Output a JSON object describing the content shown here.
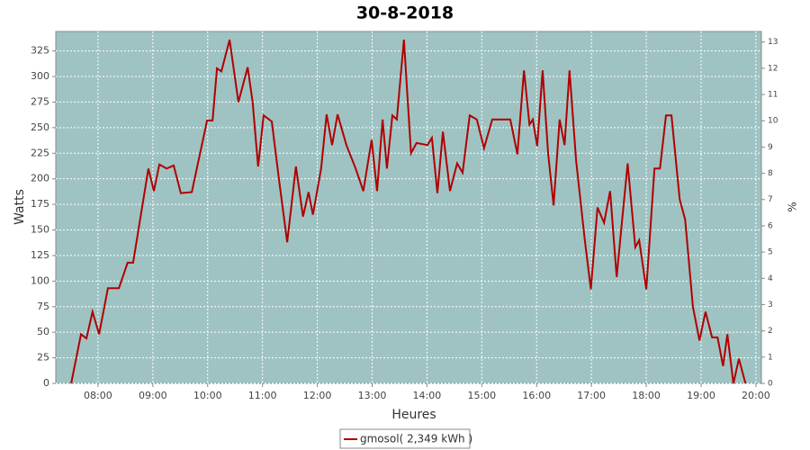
{
  "chart_data": {
    "type": "line",
    "title": "30-8-2018",
    "x_label": "Heures",
    "y_label": "Watts",
    "y2_label": "%",
    "x": [
      7.51,
      7.69,
      7.79,
      7.9,
      8.02,
      8.18,
      8.38,
      8.54,
      8.64,
      8.92,
      9.02,
      9.12,
      9.25,
      9.38,
      9.51,
      9.71,
      9.99,
      10.09,
      10.17,
      10.25,
      10.4,
      10.56,
      10.73,
      10.82,
      10.92,
      11.02,
      11.17,
      11.3,
      11.45,
      11.61,
      11.74,
      11.84,
      11.92,
      12.07,
      12.17,
      12.27,
      12.37,
      12.53,
      12.7,
      12.84,
      12.99,
      13.09,
      13.19,
      13.27,
      13.37,
      13.45,
      13.58,
      13.71,
      13.81,
      14.01,
      14.09,
      14.19,
      14.29,
      14.42,
      14.55,
      14.65,
      14.78,
      14.91,
      15.04,
      15.19,
      15.37,
      15.52,
      15.65,
      15.77,
      15.87,
      15.93,
      16.01,
      16.11,
      16.21,
      16.31,
      16.42,
      16.51,
      16.6,
      16.72,
      16.88,
      16.99,
      17.11,
      17.23,
      17.34,
      17.46,
      17.56,
      17.66,
      17.8,
      17.87,
      18.0,
      18.15,
      18.25,
      18.36,
      18.46,
      18.61,
      18.71,
      18.85,
      18.97,
      19.08,
      19.2,
      19.3,
      19.4,
      19.48,
      19.59,
      19.69,
      19.81
    ],
    "series": [
      {
        "name": "gmosol( 2,349 kWh )",
        "color": "#b00000",
        "values": [
          0,
          48,
          44,
          70,
          48,
          93,
          93,
          118,
          118,
          210,
          188,
          214,
          210,
          213,
          186,
          187,
          257,
          257,
          308,
          305,
          336,
          275,
          309,
          275,
          212,
          262,
          256,
          200,
          138,
          212,
          163,
          187,
          165,
          210,
          263,
          233,
          263,
          233,
          210,
          188,
          238,
          188,
          258,
          210,
          262,
          258,
          336,
          225,
          235,
          233,
          240,
          186,
          246,
          188,
          215,
          206,
          262,
          258,
          230,
          258,
          258,
          258,
          224,
          306,
          253,
          258,
          232,
          306,
          225,
          174,
          258,
          233,
          306,
          218,
          140,
          92,
          172,
          157,
          188,
          104,
          160,
          215,
          133,
          140,
          92,
          210,
          210,
          262,
          262,
          180,
          160,
          75,
          42,
          70,
          45,
          45,
          17,
          48,
          0,
          24,
          0
        ]
      }
    ],
    "xlim": [
      7.23,
      20.1
    ],
    "xticks": [
      {
        "value": 8,
        "label": "08:00"
      },
      {
        "value": 9,
        "label": "09:00"
      },
      {
        "value": 10,
        "label": "10:00"
      },
      {
        "value": 11,
        "label": "11:00"
      },
      {
        "value": 12,
        "label": "12:00"
      },
      {
        "value": 13,
        "label": "13:00"
      },
      {
        "value": 14,
        "label": "14:00"
      },
      {
        "value": 15,
        "label": "15:00"
      },
      {
        "value": 16,
        "label": "16:00"
      },
      {
        "value": 17,
        "label": "17:00"
      },
      {
        "value": 18,
        "label": "18:00"
      },
      {
        "value": 19,
        "label": "19:00"
      },
      {
        "value": 20,
        "label": "20:00"
      }
    ],
    "ylim": [
      0,
      344
    ],
    "yticks": [
      0,
      25,
      50,
      75,
      100,
      125,
      150,
      175,
      200,
      225,
      250,
      275,
      300,
      325
    ],
    "y2lim": [
      0,
      13.4
    ],
    "y2ticks": [
      0,
      1,
      2,
      3,
      4,
      5,
      6,
      7,
      8,
      9,
      10,
      11,
      12,
      13
    ],
    "grid": true,
    "plot_background": "#9fc3c3"
  }
}
